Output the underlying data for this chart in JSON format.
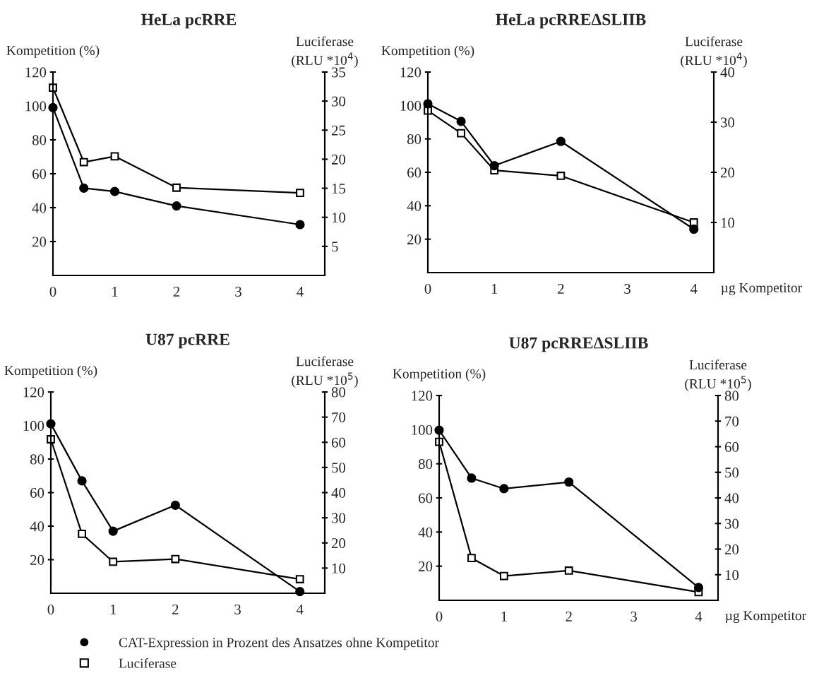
{
  "chart_data": [
    {
      "type": "line",
      "title": "HeLa pcRRE",
      "ylabel": "Kompetition (%)",
      "y2label": "Luciferase\n(RLU *10$^{4}$)",
      "x": [
        0,
        0.5,
        1,
        2,
        4
      ],
      "xlim": [
        0,
        4.4
      ],
      "xticks": [
        0,
        1,
        2,
        3,
        4
      ],
      "ylim": [
        0,
        120
      ],
      "yticks": [
        20,
        40,
        60,
        80,
        100,
        120
      ],
      "y2lim": [
        0,
        35
      ],
      "y2ticks": [
        5,
        10,
        15,
        20,
        25,
        30,
        35
      ],
      "grid": false,
      "line_style": "solid",
      "legend": "bottom",
      "series": [
        {
          "name": "CAT-Expression in Prozent des Ansatzes ohne Kompetitor",
          "color": "#000000",
          "marker": "circle",
          "values": [
            99,
            51.5,
            49.5,
            41,
            30
          ]
        },
        {
          "name": "Luciferase",
          "color": "#000000",
          "marker": "square",
          "axis": "y2",
          "values": [
            32.3,
            19.5,
            20.5,
            15.1,
            14.2
          ]
        }
      ]
    },
    {
      "type": "line",
      "title": "HeLa pcRREΔSLIIB",
      "ylabel": "Kompetition (%)",
      "y2label": "Luciferase\n(RLU *10$^{4}$)",
      "xlabel": "µg Kompetitor",
      "x": [
        0,
        0.5,
        1,
        2,
        4
      ],
      "xlim": [
        0,
        4.3
      ],
      "xticks": [
        0,
        1,
        2,
        3,
        4
      ],
      "ylim": [
        0,
        120
      ],
      "yticks": [
        20,
        40,
        60,
        80,
        100,
        120
      ],
      "y2lim": [
        0,
        40
      ],
      "y2ticks": [
        10,
        20,
        30,
        40
      ],
      "grid": false,
      "line_style": "solid",
      "series": [
        {
          "color": "#000000",
          "marker": "circle",
          "values": [
            101,
            90.5,
            64,
            78.5,
            26
          ]
        },
        {
          "color": "#000000",
          "marker": "square",
          "axis": "y2",
          "values": [
            32.3,
            27.8,
            20.4,
            19.3,
            10
          ]
        }
      ]
    },
    {
      "type": "line",
      "title": "U87 pcRRE",
      "ylabel": "Kompetition (%)",
      "y2label": "Luciferase\n(RLU *10$^{5}$)",
      "x": [
        0,
        0.5,
        1,
        2,
        4
      ],
      "xlim": [
        0,
        4.4
      ],
      "xticks": [
        0,
        1,
        2,
        3,
        4
      ],
      "ylim": [
        0,
        120
      ],
      "yticks": [
        20,
        40,
        60,
        80,
        100,
        120
      ],
      "y2lim": [
        0,
        80
      ],
      "y2ticks": [
        10,
        20,
        30,
        40,
        50,
        60,
        70,
        80
      ],
      "grid": false,
      "line_style": "solid",
      "series": [
        {
          "color": "#000000",
          "marker": "circle",
          "values": [
            101,
            67,
            37,
            52.5,
            1
          ]
        },
        {
          "color": "#000000",
          "marker": "square",
          "axis": "y2",
          "values": [
            61.2,
            23.6,
            12.5,
            13.6,
            5.6
          ]
        }
      ]
    },
    {
      "type": "line",
      "title": "U87 pcRREΔSLIIB",
      "ylabel": "Kompetition (%)",
      "y2label": "Luciferase\n(RLU *10$^{5}$)",
      "xlabel": "µg Kompetitor",
      "x": [
        0,
        0.5,
        1,
        2,
        4
      ],
      "xlim": [
        0,
        4.3
      ],
      "xticks": [
        0,
        1,
        2,
        3,
        4
      ],
      "ylim": [
        0,
        120
      ],
      "yticks": [
        20,
        40,
        60,
        80,
        100,
        120
      ],
      "y2lim": [
        0,
        80
      ],
      "y2ticks": [
        10,
        20,
        30,
        40,
        50,
        60,
        70,
        80
      ],
      "grid": false,
      "line_style": "solid",
      "series": [
        {
          "color": "#000000",
          "marker": "circle",
          "values": [
            99.7,
            71.6,
            65.4,
            69.3,
            7.5
          ]
        },
        {
          "color": "#000000",
          "marker": "square",
          "axis": "y2",
          "values": [
            61.9,
            16.5,
            9.5,
            11.6,
            3.2
          ]
        }
      ]
    }
  ]
}
